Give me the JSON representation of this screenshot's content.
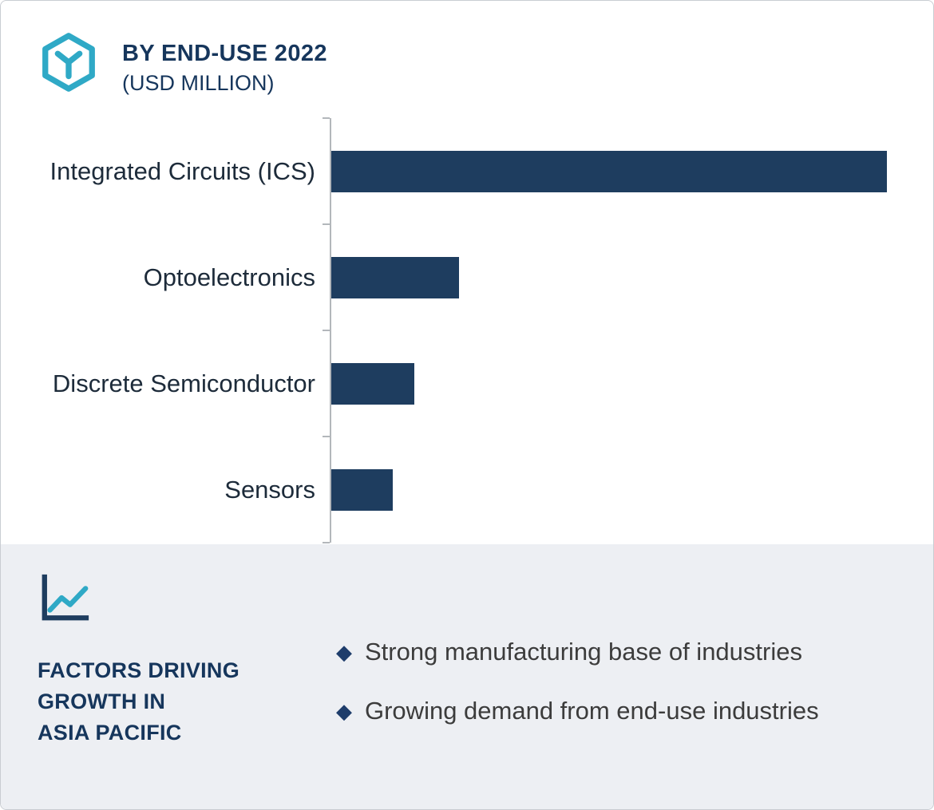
{
  "header": {
    "title": "BY END-USE 2022",
    "subtitle": "(USD MILLION)",
    "icon": "hexagon-y-icon"
  },
  "colors": {
    "bar": "#1e3d5f",
    "navy_text": "#16365c",
    "teal_accent": "#2fa9c6",
    "panel_background": "#edeff3",
    "bullet_diamond": "#1e3d6b",
    "axis": "#b3b7bb"
  },
  "chart_data": {
    "type": "bar",
    "orientation": "horizontal",
    "title": "BY END-USE 2022 (USD MILLION)",
    "categories": [
      "Integrated Circuits (ICS)",
      "Optoelectronics",
      "Discrete Semiconductor",
      "Sensors"
    ],
    "values": [
      100,
      23,
      15,
      11
    ],
    "value_scale": "relative (bar lengths; no numeric axis labels shown)",
    "xlabel": "",
    "ylabel": "",
    "grid": false,
    "legend": false
  },
  "factors_panel": {
    "icon": "line-chart-icon",
    "heading": "FACTORS DRIVING\nGROWTH IN\nASIA PACIFIC",
    "bullet_marker": "◆",
    "bullets": [
      "Strong manufacturing base of industries",
      "Growing demand from end-use industries"
    ]
  }
}
